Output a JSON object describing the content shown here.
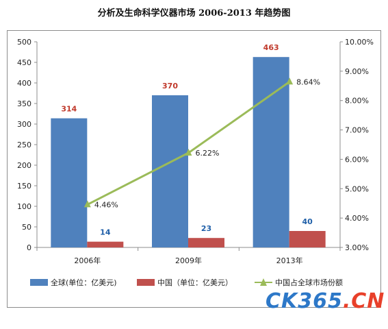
{
  "page": {
    "title": "分析及生命科学仪器市场 2006-2013 年趋势图"
  },
  "chart_data": {
    "type": "bar",
    "title": "分析及生命科学仪器市场 2006-2013 年趋势图",
    "categories": [
      "2006年",
      "2009年",
      "2013年"
    ],
    "series": [
      {
        "name": "全球(单位：亿美元)",
        "type": "bar",
        "axis": "left",
        "values": [
          314,
          370,
          463
        ],
        "color": "#4f81bd",
        "label_color": "#c0392b"
      },
      {
        "name": "中国（单位：亿美元）",
        "type": "bar",
        "axis": "left",
        "values": [
          14,
          23,
          40
        ],
        "color": "#c0504d",
        "label_color": "#1f5fa8"
      },
      {
        "name": "中国占全球市场份额",
        "type": "line",
        "axis": "right",
        "values": [
          4.46,
          6.22,
          8.64
        ],
        "value_labels": [
          "4.46%",
          "6.22%",
          "8.64%"
        ],
        "color": "#9bbb59"
      }
    ],
    "y_left": {
      "min": 0,
      "max": 500,
      "step": 50,
      "tick_labels": [
        "0",
        "50",
        "100",
        "150",
        "200",
        "250",
        "300",
        "350",
        "400",
        "450",
        "500"
      ]
    },
    "y_right": {
      "min": 3.0,
      "max": 10.0,
      "step": 1.0,
      "tick_labels": [
        "3.00%",
        "4.00%",
        "5.00%",
        "6.00%",
        "7.00%",
        "8.00%",
        "9.00%",
        "10.00%"
      ]
    },
    "grid": false,
    "legend_position": "bottom"
  },
  "watermark": {
    "part1": "CK365",
    "part2": ".CN"
  }
}
